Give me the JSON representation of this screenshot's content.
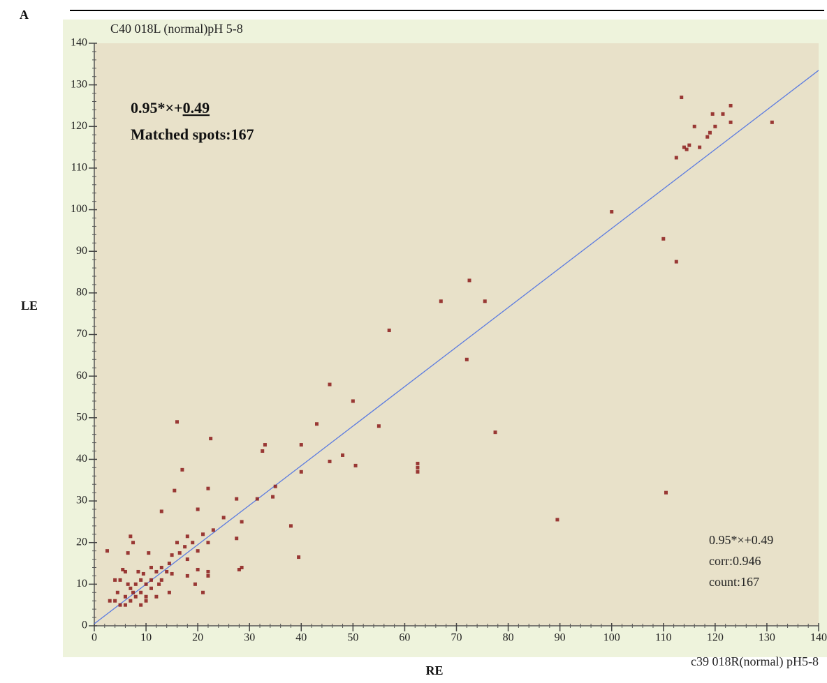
{
  "chart_data": {
    "type": "scatter",
    "panel_label": "A",
    "title": "C40 018L (normal)pH 5-8",
    "subtitle": "c39 018R(normal) pH5-8",
    "xlabel": "RE",
    "ylabel": "LE",
    "xlim": [
      0,
      140
    ],
    "ylim": [
      0,
      140
    ],
    "xticks": [
      0,
      10,
      20,
      30,
      40,
      50,
      60,
      70,
      80,
      90,
      100,
      110,
      120,
      130,
      140
    ],
    "yticks": [
      0,
      10,
      20,
      30,
      40,
      50,
      60,
      70,
      80,
      90,
      100,
      110,
      120,
      130,
      140
    ],
    "fit": {
      "slope": 0.95,
      "intercept": 0.49,
      "color": "#5b7be0"
    },
    "annotation_top": {
      "equation_prefix": "0.95*×+",
      "equation_underlined": "0.49",
      "matched": "Matched spots:167"
    },
    "annotation_bottom": [
      "0.95*×+0.49",
      "corr:0.946",
      "count:167"
    ],
    "series": [
      {
        "name": "spots",
        "color": "#8b1a1a",
        "x": [
          113.5,
          123,
          119.5,
          121.5,
          120,
          116,
          123,
          131,
          119,
          118.5,
          117,
          115,
          114.5,
          114,
          112.5,
          100,
          110,
          112.5,
          110.5,
          89.5,
          72.5,
          67,
          75.5,
          72,
          57,
          77.5,
          62.5,
          62.5,
          62.5,
          55,
          50,
          50.5,
          48,
          45.5,
          45.5,
          43,
          40,
          40,
          39.5,
          38,
          35,
          34.5,
          33,
          32.5,
          31.5,
          28.5,
          28.5,
          27.5,
          27.5,
          28,
          25,
          23,
          22.5,
          22,
          22,
          22,
          22,
          21,
          21,
          20,
          20,
          19.5,
          19,
          18,
          18,
          18,
          17,
          16,
          15.5,
          16,
          15,
          15,
          14.5,
          14.5,
          13,
          13,
          12.5,
          12,
          11,
          11,
          10.5,
          10,
          10,
          10,
          9.5,
          9,
          9,
          8.5,
          8,
          7.5,
          7.5,
          7,
          7,
          6.5,
          6.5,
          6,
          6,
          5.5,
          5,
          5,
          4.5,
          4,
          4,
          3,
          2.5,
          12,
          11,
          8,
          7,
          6,
          9,
          13,
          14,
          16.5,
          17.5,
          20
        ],
        "values": [
          127,
          125,
          123,
          123,
          120,
          120,
          121,
          121,
          118.5,
          117.5,
          115,
          115.5,
          114.5,
          115,
          112.5,
          99.5,
          93,
          87.5,
          32,
          25.5,
          83,
          78,
          78,
          64,
          71,
          46.5,
          39,
          38,
          37,
          48,
          54,
          38.5,
          41,
          58,
          39.5,
          48.5,
          43.5,
          37,
          16.5,
          24,
          33.5,
          31,
          43.5,
          42,
          30.5,
          25,
          14,
          30.5,
          21,
          13.5,
          26,
          23,
          45,
          33,
          20,
          13,
          12,
          22,
          8,
          28,
          18,
          10,
          20,
          21.5,
          16,
          12,
          37.5,
          49,
          32.5,
          20,
          17,
          12.5,
          8,
          15,
          27.5,
          14,
          10,
          13,
          14,
          11,
          17.5,
          10,
          7,
          6,
          12.5,
          8,
          5,
          13,
          10,
          8,
          20,
          21.5,
          6,
          17.5,
          10,
          7,
          13,
          13.5,
          11,
          5,
          8,
          6,
          11,
          6,
          18,
          7,
          9,
          7,
          9,
          5,
          11,
          11,
          13,
          17.5,
          19,
          13.5
        ]
      }
    ]
  }
}
